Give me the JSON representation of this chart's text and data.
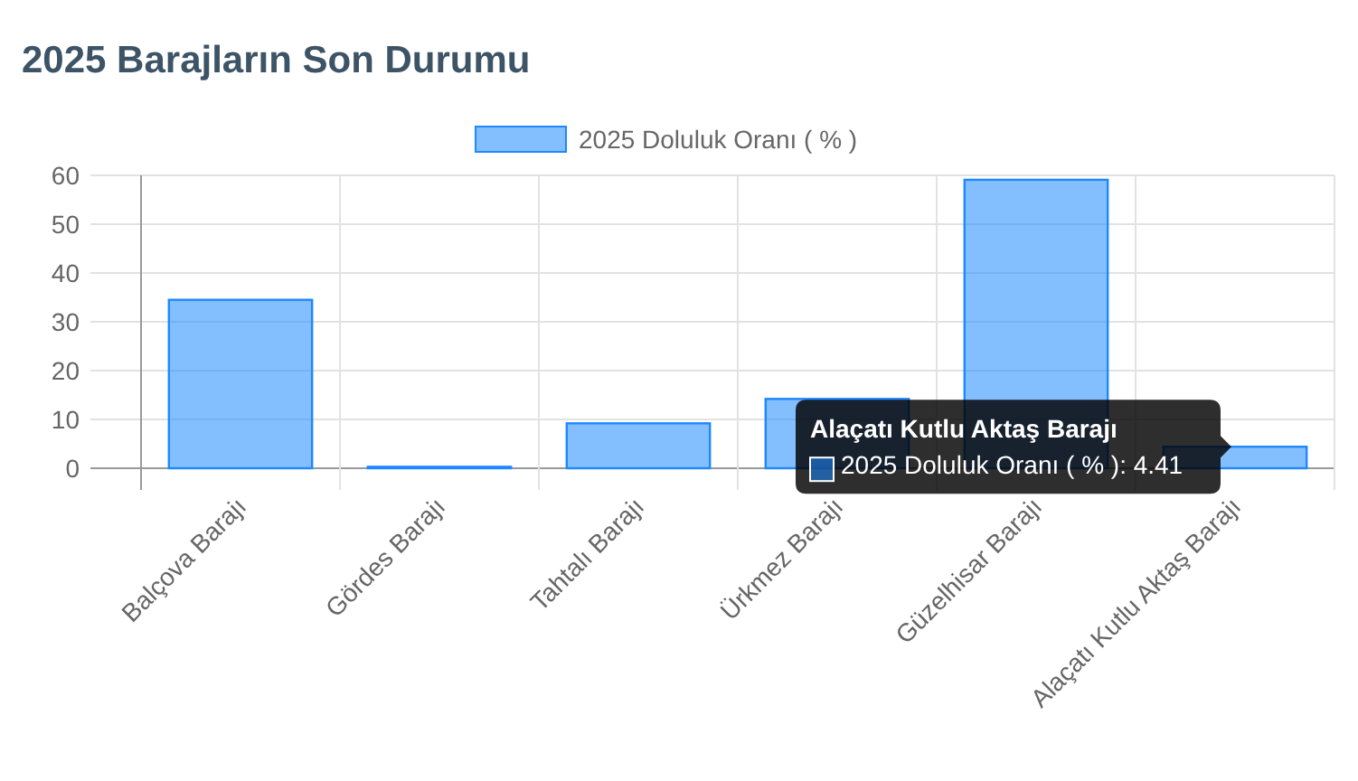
{
  "chart_data": {
    "type": "bar",
    "title": "2025 Barajların Son Durumu",
    "categories": [
      "Balçova Barajı",
      "Gördes Barajı",
      "Tahtalı Barajı",
      "Ürkmez Barajı",
      "Güzelhisar Barajı",
      "Alaçatı Kutlu Aktaş Barajı"
    ],
    "series": [
      {
        "name": "2025 Doluluk Oranı ( % )",
        "color": "#1e88ff",
        "values": [
          34.5,
          0.3,
          9.2,
          14.2,
          59.1,
          4.41
        ]
      }
    ],
    "ylim": [
      0,
      60
    ],
    "yticks": [
      0,
      10,
      20,
      30,
      40,
      50,
      60
    ],
    "grid": true,
    "legend": "top",
    "annotations": [
      {
        "text": "Alaçatı Kutlu Aktaş Barajı\n2025 Doluluk Oranı ( % ): 4.41",
        "x": "Alaçatı Kutlu Aktaş Barajı",
        "y": 4.41
      }
    ]
  }
}
